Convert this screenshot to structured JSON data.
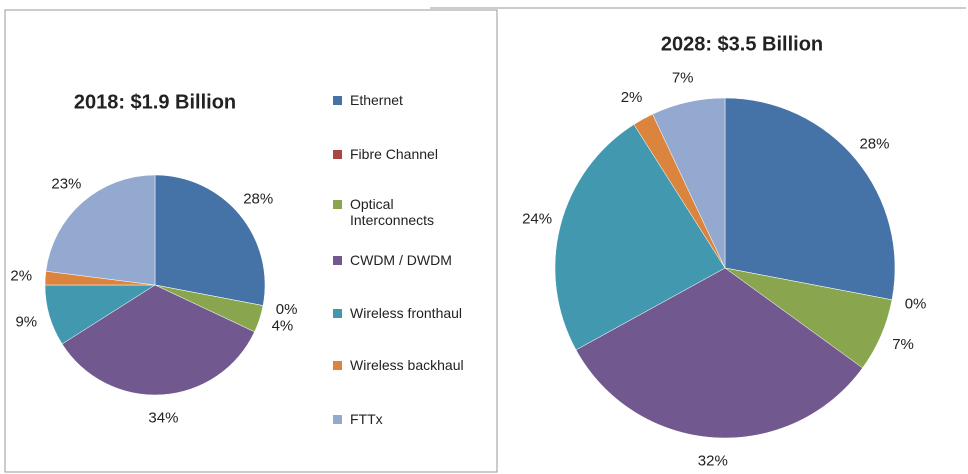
{
  "legend": [
    "Ethernet",
    "Fibre Channel",
    "Optical Interconnects",
    "CWDM / DWDM",
    "Wireless fronthaul",
    "Wireless backhaul",
    "FTTx"
  ],
  "colors": [
    "#4572a7",
    "#aa4643",
    "#89a54e",
    "#71588f",
    "#4198af",
    "#db843d",
    "#93a9cf"
  ],
  "chart_data": [
    {
      "type": "pie",
      "title": "2018: $1.9 Billion",
      "values": [
        28,
        0,
        4,
        34,
        9,
        2,
        23
      ],
      "value_labels": [
        "28%",
        "0%",
        "4%",
        "34%",
        "9%",
        "2%",
        "23%"
      ]
    },
    {
      "type": "pie",
      "title": "2028: $3.5 Billion",
      "values": [
        28,
        0,
        7,
        32,
        24,
        2,
        7
      ],
      "value_labels": [
        "28%",
        "0%",
        "7%",
        "32%",
        "24%",
        "2%",
        "7%"
      ]
    }
  ]
}
